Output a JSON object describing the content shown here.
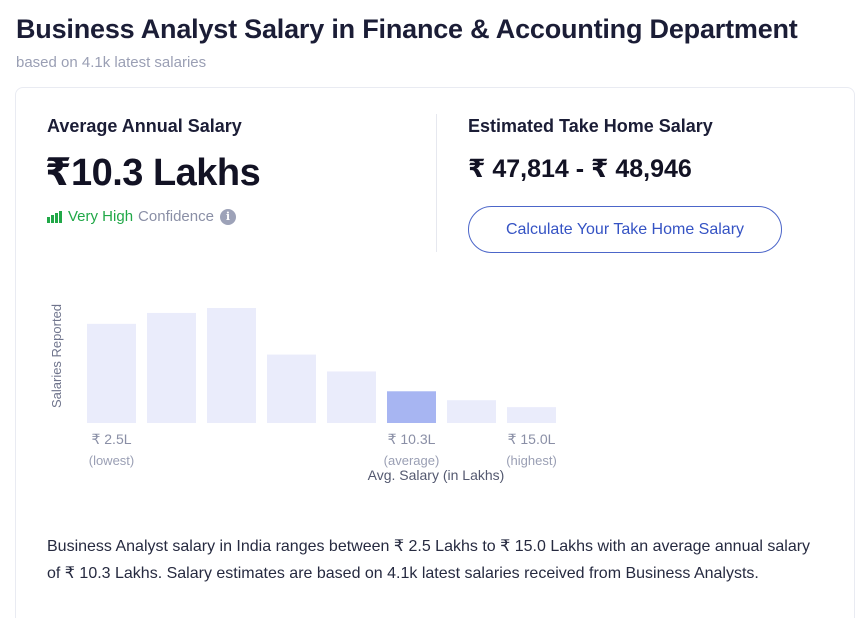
{
  "header": {
    "title": "Business Analyst Salary in Finance & Accounting Department",
    "subtitle": "based on 4.1k latest salaries"
  },
  "average": {
    "label": "Average Annual Salary",
    "value": "₹10.3 Lakhs",
    "confidence_level": "Very High",
    "confidence_word": "Confidence",
    "info_icon": "info-icon",
    "confidence_color": "#21a848"
  },
  "take_home": {
    "label": "Estimated Take Home Salary",
    "value": "₹ 47,814 - ₹ 48,946",
    "button_label": "Calculate Your Take Home Salary"
  },
  "chart_data": {
    "type": "bar",
    "ylabel": "Salaries Reported",
    "xlabel": "Avg. Salary (in Lakhs)",
    "bar_color": "#eaecfb",
    "highlight_color": "#a7b5f2",
    "highlight_index": 5,
    "values": [
      100,
      111,
      116,
      69,
      52,
      32,
      23,
      16
    ],
    "tick_labels": [
      {
        "index": 0,
        "value": "₹ 2.5L",
        "sub": "(lowest)"
      },
      {
        "index": 5,
        "value": "₹ 10.3L",
        "sub": "(average)"
      },
      {
        "index": 7,
        "value": "₹ 15.0L",
        "sub": "(highest)"
      }
    ]
  },
  "description": "Business Analyst salary in India ranges between ₹ 2.5 Lakhs to ₹ 15.0 Lakhs with an average annual salary of ₹ 10.3 Lakhs. Salary estimates are based on 4.1k latest salaries received from Business Analysts."
}
